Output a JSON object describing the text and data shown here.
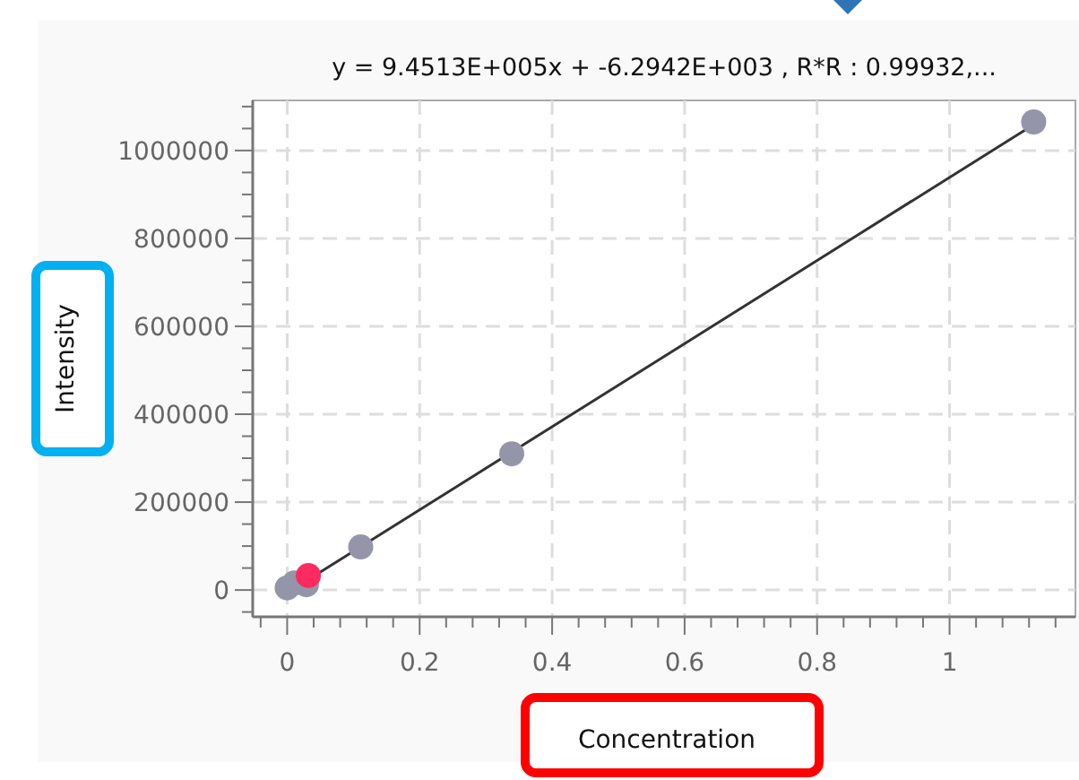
{
  "chart_data": {
    "type": "scatter",
    "title": "y = 9.4513E+005x + -6.2942E+003 , R*R : 0.99932,...",
    "xlabel": "Concentration",
    "ylabel": "Intensity",
    "xlim": [
      -0.052,
      1.19
    ],
    "ylim": [
      -61000,
      1114000
    ],
    "xticks": [
      {
        "value": -0.04,
        "label": null
      },
      0,
      {
        "value": 0.04,
        "label": null
      },
      {
        "value": 0.08,
        "label": null
      },
      {
        "value": 0.12,
        "label": null
      },
      {
        "value": 0.16,
        "label": null
      },
      0.2,
      {
        "value": 0.24,
        "label": null
      },
      {
        "value": 0.28,
        "label": null
      },
      {
        "value": 0.32,
        "label": null
      },
      {
        "value": 0.36,
        "label": null
      },
      0.4,
      {
        "value": 0.44,
        "label": null
      },
      {
        "value": 0.48,
        "label": null
      },
      {
        "value": 0.52,
        "label": null
      },
      {
        "value": 0.56,
        "label": null
      },
      0.6,
      {
        "value": 0.64,
        "label": null
      },
      {
        "value": 0.68,
        "label": null
      },
      {
        "value": 0.72,
        "label": null
      },
      {
        "value": 0.76,
        "label": null
      },
      0.8,
      {
        "value": 0.84,
        "label": null
      },
      {
        "value": 0.88,
        "label": null
      },
      {
        "value": 0.92,
        "label": null
      },
      {
        "value": 0.96,
        "label": null
      },
      1,
      {
        "value": 1.04,
        "label": null
      },
      {
        "value": 1.08,
        "label": null
      },
      {
        "value": 1.12,
        "label": null
      },
      {
        "value": 1.16,
        "label": null
      }
    ],
    "yticks": [
      {
        "value": -50000,
        "label": null
      },
      0,
      {
        "value": 50000,
        "label": null
      },
      {
        "value": 100000,
        "label": null
      },
      {
        "value": 150000,
        "label": null
      },
      200000,
      {
        "value": 250000,
        "label": null
      },
      {
        "value": 300000,
        "label": null
      },
      {
        "value": 350000,
        "label": null
      },
      400000,
      {
        "value": 450000,
        "label": null
      },
      {
        "value": 500000,
        "label": null
      },
      {
        "value": 550000,
        "label": null
      },
      600000,
      {
        "value": 650000,
        "label": null
      },
      {
        "value": 700000,
        "label": null
      },
      {
        "value": 750000,
        "label": null
      },
      800000,
      {
        "value": 850000,
        "label": null
      },
      {
        "value": 900000,
        "label": null
      },
      {
        "value": 950000,
        "label": null
      },
      1000000,
      {
        "value": 1050000,
        "label": null
      },
      {
        "value": 1100000,
        "label": null
      }
    ],
    "grid": true,
    "marker": "circle",
    "series": [
      {
        "type": "line",
        "color": "#333333",
        "x": [
          0.007,
          1.127
        ],
        "values": [
          0,
          1059000
        ],
        "marker": "none"
      },
      {
        "color": "#9595aa",
        "x": [
          0,
          0.011,
          0.029,
          0.111,
          0.339,
          1.127
        ],
        "values": [
          5000,
          16000,
          12000,
          98000,
          310000,
          1065000
        ]
      },
      {
        "color": "#ff2a5f",
        "x": [
          0.032
        ],
        "values": [
          33000
        ]
      }
    ]
  }
}
